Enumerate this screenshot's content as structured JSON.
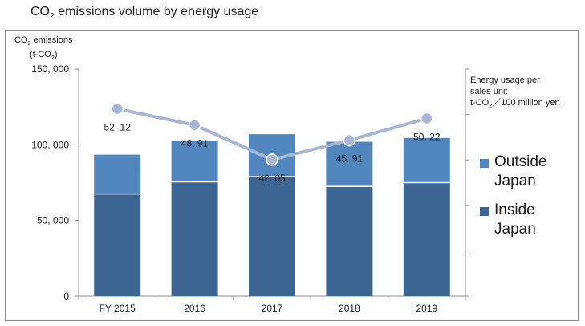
{
  "chart_data": {
    "type": "bar",
    "title_main": "CO",
    "title_sub": "2",
    "title_rest": " emissions volume by energy usage",
    "ylabel": {
      "l1a": "CO",
      "l1sub": "2",
      "l1b": " emissions",
      "l2a": "(t-CO",
      "l2sub": "2",
      "l2b": ")"
    },
    "y2label": {
      "l1": "Energy usage per",
      "l2": "sales unit",
      "l3a": "t-CO",
      "l3sub": "2",
      "l3b": "／100 million yen"
    },
    "categories": [
      "FY 2015",
      "2016",
      "2017",
      "2018",
      "2019"
    ],
    "ylim": [
      0,
      150000
    ],
    "yticks": [
      0,
      50000,
      100000,
      150000
    ],
    "ytick_labels": [
      "0",
      "50, 000",
      "100, 000",
      "150, 000"
    ],
    "series": [
      {
        "name": "Inside Japan",
        "legend_l1": "Inside",
        "legend_l2": "Japan",
        "color": "#3d6594",
        "values": [
          67500,
          75500,
          79000,
          72500,
          75000
        ]
      },
      {
        "name": "Outside Japan",
        "legend_l1": "Outside",
        "legend_l2": "Japan",
        "color": "#5186be",
        "values": [
          26000,
          27000,
          28000,
          29500,
          29500
        ]
      }
    ],
    "line_series": {
      "name": "Energy usage per sales unit",
      "color": "#a6b6d4",
      "values": [
        52.12,
        48.91,
        42.05,
        45.91,
        50.22
      ],
      "labels": [
        "52. 12",
        "48. 91",
        "42. 05",
        "45. 91",
        "50. 22"
      ],
      "y2lim": [
        15,
        60
      ]
    }
  }
}
